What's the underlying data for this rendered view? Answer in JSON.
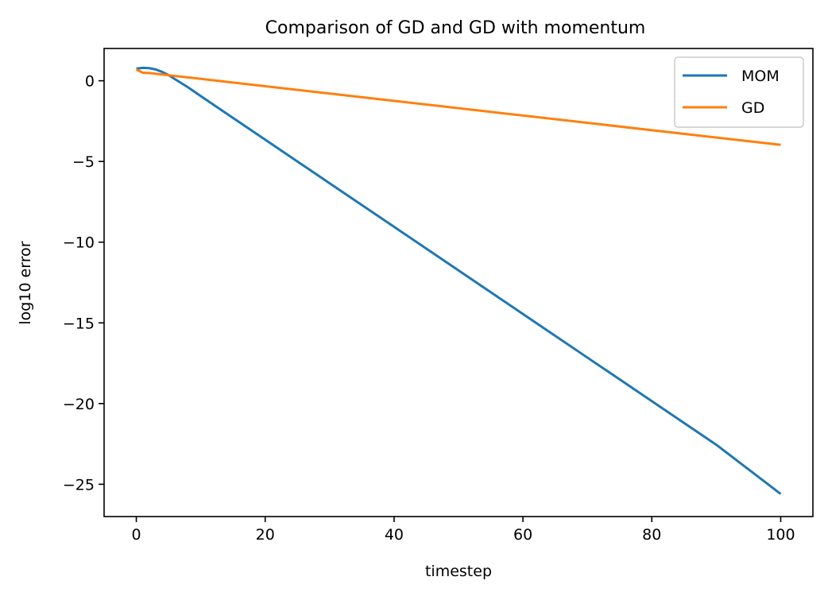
{
  "chart_data": {
    "type": "line",
    "title": "Comparison of GD and GD with momentum",
    "xlabel": "timestep",
    "ylabel": "log10 error",
    "xlim": [
      -5,
      105
    ],
    "ylim": [
      -27,
      2
    ],
    "xticks": [
      0,
      20,
      40,
      60,
      80,
      100
    ],
    "xtick_labels": [
      "0",
      "20",
      "40",
      "60",
      "80",
      "100"
    ],
    "yticks": [
      0,
      -5,
      -10,
      -15,
      -20,
      -25
    ],
    "ytick_labels": [
      "0",
      "−5",
      "−10",
      "−15",
      "−20",
      "−25"
    ],
    "grid": false,
    "legend_position": "top-right",
    "series": [
      {
        "name": "MOM",
        "color": "#1f77b4",
        "x": [
          0,
          1,
          2,
          3,
          4,
          5,
          6,
          8,
          10,
          15,
          20,
          30,
          40,
          50,
          60,
          70,
          80,
          90,
          100
        ],
        "y": [
          0.75,
          0.8,
          0.78,
          0.7,
          0.55,
          0.35,
          0.1,
          -0.4,
          -0.95,
          -2.3,
          -3.65,
          -6.35,
          -9.05,
          -11.75,
          -14.45,
          -17.15,
          -19.85,
          -22.55,
          -25.6
        ]
      },
      {
        "name": "GD",
        "color": "#ff7f0e",
        "x": [
          0,
          1,
          2,
          100
        ],
        "y": [
          0.7,
          0.5,
          0.48,
          -3.97
        ]
      }
    ]
  }
}
